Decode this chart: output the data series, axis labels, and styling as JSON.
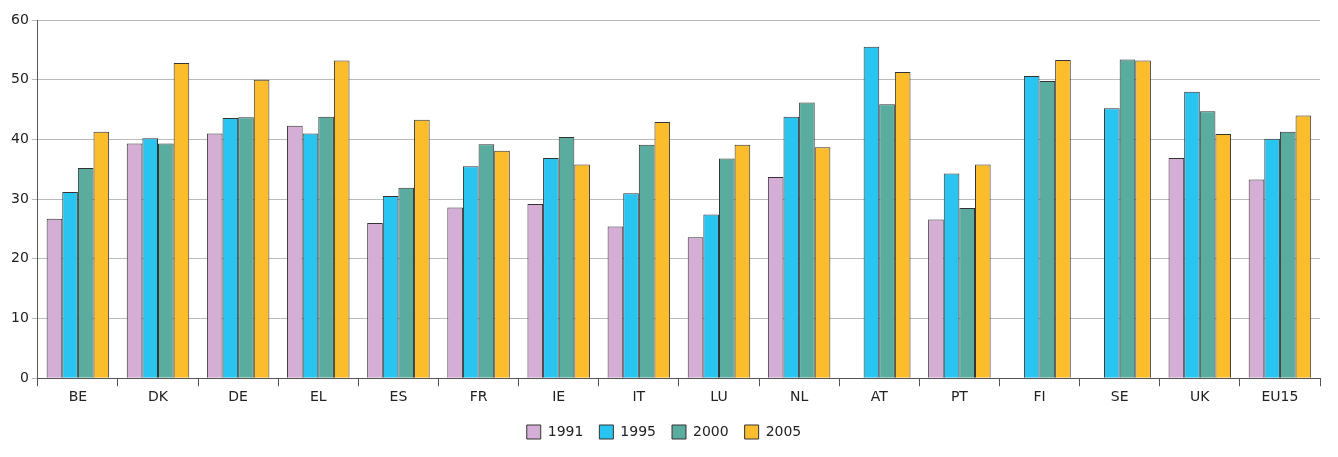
{
  "chart_data": {
    "type": "bar",
    "categories": [
      "BE",
      "DK",
      "DE",
      "EL",
      "ES",
      "FR",
      "IE",
      "IT",
      "LU",
      "NL",
      "AT",
      "PT",
      "FI",
      "SE",
      "UK",
      "EU15"
    ],
    "series": [
      {
        "name": "1991",
        "color": "#d4aed4",
        "values": [
          26.7,
          39.3,
          41,
          42.3,
          26,
          28.6,
          29.2,
          25.4,
          23.6,
          33.7,
          null,
          26.6,
          null,
          null,
          36.9,
          33.3
        ]
      },
      {
        "name": "1995",
        "color": "#29c4f0",
        "values": [
          31.2,
          40.2,
          43.6,
          41,
          30.5,
          35.5,
          36.9,
          31,
          27.4,
          43.8,
          55.5,
          34.3,
          50.6,
          45.2,
          48,
          40.1
        ]
      },
      {
        "name": "2000",
        "color": "#5aad9e",
        "values": [
          35.2,
          39.3,
          43.7,
          43.8,
          31.9,
          39.2,
          40.4,
          39.1,
          36.8,
          46.2,
          45.9,
          28.5,
          49.8,
          53.4,
          44.7,
          41.3
        ]
      },
      {
        "name": "2005",
        "color": "#fbbd2b",
        "values": [
          41.3,
          52.8,
          50,
          53.2,
          43.3,
          38.1,
          35.8,
          42.9,
          39.1,
          38.7,
          51.3,
          35.8,
          53.3,
          53.2,
          40.9,
          44
        ]
      }
    ],
    "ylim": [
      0,
      60
    ],
    "yticks": [
      0,
      10,
      20,
      30,
      40,
      50,
      60
    ],
    "grid": "y",
    "legend": "bottom"
  }
}
